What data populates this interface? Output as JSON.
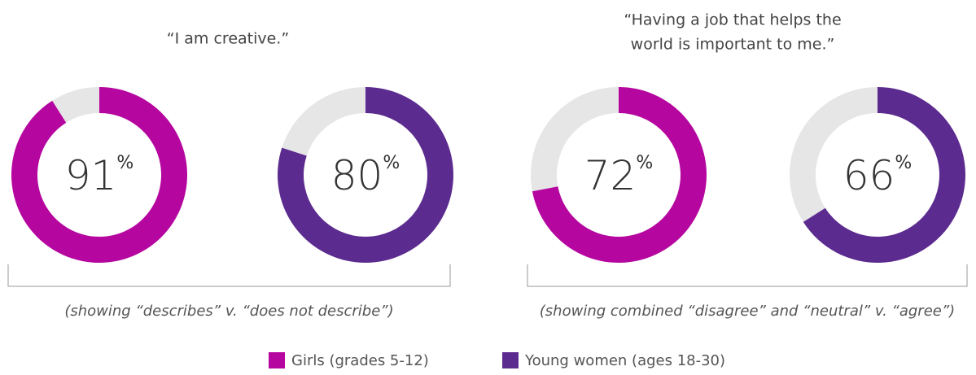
{
  "chart_data": [
    {
      "type": "donut",
      "title": [
        "“I am creative.”"
      ],
      "note": "(showing “describes” v. “does not describe”)",
      "unit": "%",
      "remainder_color": "#e6e6e6",
      "series": [
        {
          "name": "Girls (grades 5-12)",
          "color": "#b5069f",
          "values": [
            91
          ]
        },
        {
          "name": "Young women (ages 18-30)",
          "color": "#5c2b8f",
          "values": [
            80
          ]
        }
      ]
    },
    {
      "type": "donut",
      "title": [
        "“Having a job that helps the",
        "world is important to me.”"
      ],
      "note": "(showing combined “disagree” and “neutral” v. “agree”)",
      "unit": "%",
      "remainder_color": "#e6e6e6",
      "series": [
        {
          "name": "Girls (grades 5-12)",
          "color": "#b5069f",
          "values": [
            72
          ]
        },
        {
          "name": "Young women (ages 18-30)",
          "color": "#5c2b8f",
          "values": [
            66
          ]
        }
      ]
    }
  ]
}
